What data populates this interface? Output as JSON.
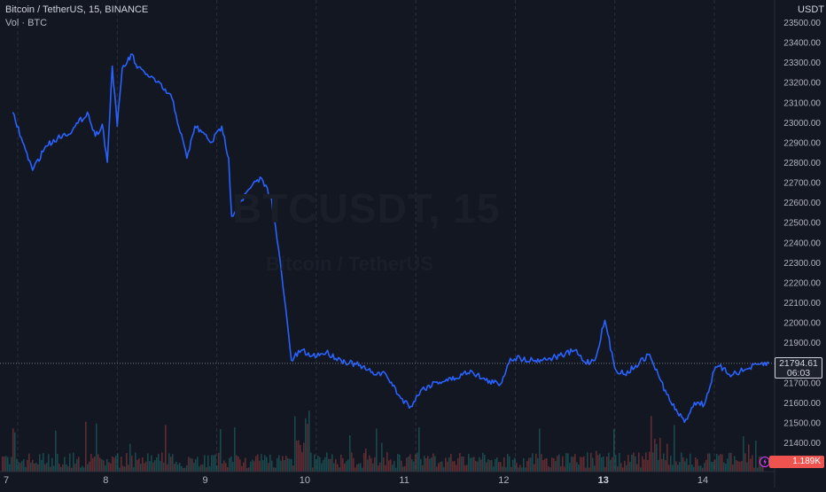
{
  "legend": {
    "symbol_line": "Bitcoin / TetherUS, 15, BINANCE",
    "volume_line": "Vol · BTC"
  },
  "watermark": {
    "main": "BTCUSDT, 15",
    "sub": "Bitcoin / TetherUS"
  },
  "price_axis": {
    "currency": "USDT"
  },
  "last_price": {
    "value": "21794.61",
    "countdown": "06:03"
  },
  "volume_tag": {
    "value": "1.189K"
  },
  "colors": {
    "background": "#131722",
    "line": "#2962ff",
    "vol_up": "#26a69a",
    "vol_down": "#ef5350",
    "grid": "#2a2e39"
  },
  "chart_data": {
    "type": "line",
    "title": "Bitcoin / TetherUS, 15, BINANCE",
    "xlabel": "",
    "ylabel": "USDT",
    "ylim": [
      21300,
      23550
    ],
    "x_tick_labels": [
      "7",
      "8",
      "9",
      "10",
      "11",
      "12",
      "13",
      "14"
    ],
    "x_tick_pos": [
      7,
      8,
      9,
      10,
      11,
      12,
      13,
      14
    ],
    "y_tick_labels": [
      "21400.00",
      "21500.00",
      "21600.00",
      "21700.00",
      "21800.00",
      "21900.00",
      "22000.00",
      "22100.00",
      "22200.00",
      "22300.00",
      "22400.00",
      "22500.00",
      "22600.00",
      "22700.00",
      "22800.00",
      "22900.00",
      "23000.00",
      "23100.00",
      "23200.00",
      "23300.00",
      "23400.00",
      "23500.00"
    ],
    "series": [
      {
        "x": [
          6.95,
          7.05,
          7.15,
          7.28,
          7.4,
          7.55,
          7.7,
          7.78,
          7.85,
          7.9,
          7.95,
          8.0,
          8.05,
          8.1,
          8.15,
          8.2,
          8.3,
          8.4,
          8.55,
          8.7,
          8.78,
          8.85,
          8.95,
          9.05,
          9.12,
          9.15,
          9.25,
          9.35,
          9.45,
          9.55,
          9.65,
          9.75,
          9.85,
          9.95,
          10.1,
          10.25,
          10.4,
          10.55,
          10.7,
          10.85,
          10.95,
          11.05,
          11.2,
          11.4,
          11.55,
          11.7,
          11.85,
          11.95,
          12.05,
          12.2,
          12.35,
          12.5,
          12.6,
          12.7,
          12.8,
          12.9,
          13.0,
          13.1,
          13.25,
          13.35,
          13.45,
          13.55,
          13.7,
          13.8,
          13.9,
          14.0,
          14.05,
          14.15,
          14.3,
          14.45,
          14.55
        ],
        "y": [
          23050,
          22900,
          22760,
          22880,
          22920,
          22960,
          23050,
          22930,
          22990,
          22800,
          23280,
          22980,
          23270,
          23300,
          23340,
          23270,
          23240,
          23200,
          23120,
          22820,
          22980,
          22950,
          22900,
          22980,
          22820,
          22530,
          22610,
          22680,
          22720,
          22620,
          22250,
          21810,
          21860,
          21830,
          21850,
          21810,
          21790,
          21750,
          21740,
          21620,
          21580,
          21660,
          21700,
          21720,
          21760,
          21710,
          21690,
          21820,
          21820,
          21810,
          21820,
          21840,
          21860,
          21800,
          21810,
          22010,
          21770,
          21740,
          21800,
          21840,
          21720,
          21610,
          21500,
          21600,
          21590,
          21760,
          21780,
          21740,
          21760,
          21790,
          21794.61
        ]
      }
    ],
    "volume_series": {
      "name": "Vol · BTC"
    }
  }
}
